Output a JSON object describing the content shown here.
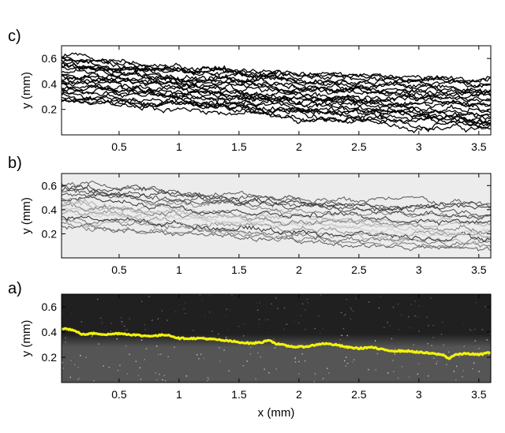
{
  "chart_data": [
    {
      "panel": "c)",
      "type": "line",
      "title": "",
      "xlabel": "",
      "ylabel": "y (mm)",
      "xlim": [
        0.02,
        3.6
      ],
      "ylim": [
        0.0,
        0.7
      ],
      "xticks": [
        "0.5",
        "1",
        "1.5",
        "2",
        "2.5",
        "3",
        "3.5"
      ],
      "yticks": [
        "0.2",
        "0.4",
        "0.6"
      ],
      "background": "#ffffff",
      "line_color": "#000000",
      "description": "Many overlaid interface traces forming a dense band",
      "band_upper": {
        "x": [
          0.02,
          0.5,
          1.0,
          1.5,
          2.0,
          2.5,
          3.0,
          3.6
        ],
        "y": [
          0.64,
          0.6,
          0.55,
          0.52,
          0.5,
          0.48,
          0.46,
          0.45
        ]
      },
      "band_lower": {
        "x": [
          0.02,
          0.5,
          1.0,
          1.5,
          2.0,
          2.5,
          3.0,
          3.6
        ],
        "y": [
          0.25,
          0.22,
          0.2,
          0.17,
          0.12,
          0.1,
          0.06,
          0.03
        ]
      },
      "trace_count": 24
    },
    {
      "panel": "b)",
      "type": "line",
      "title": "",
      "xlabel": "",
      "ylabel": "y (mm)",
      "xlim": [
        0.02,
        3.6
      ],
      "ylim": [
        0.0,
        0.7
      ],
      "xticks": [
        "0.5",
        "1",
        "1.5",
        "2",
        "2.5",
        "3",
        "3.5"
      ],
      "yticks": [
        "0.2",
        "0.4",
        "0.6"
      ],
      "background": "#ececec",
      "line_color": "#222222",
      "description": "Overlaid interface traces shaded from light to dark",
      "band_upper": {
        "x": [
          0.02,
          0.5,
          1.0,
          1.5,
          2.0,
          2.5,
          3.0,
          3.6
        ],
        "y": [
          0.62,
          0.6,
          0.56,
          0.53,
          0.51,
          0.49,
          0.47,
          0.46
        ]
      },
      "band_lower": {
        "x": [
          0.02,
          0.5,
          1.0,
          1.5,
          2.0,
          2.5,
          3.0,
          3.6
        ],
        "y": [
          0.25,
          0.22,
          0.19,
          0.16,
          0.12,
          0.1,
          0.07,
          0.05
        ]
      },
      "trace_count": 18
    },
    {
      "panel": "a)",
      "type": "line",
      "title": "",
      "xlabel": "x (mm)",
      "ylabel": "y (mm)",
      "xlim": [
        0.02,
        3.6
      ],
      "ylim": [
        0.0,
        0.7
      ],
      "xticks": [
        "0.5",
        "1",
        "1.5",
        "2",
        "2.5",
        "3",
        "3.5"
      ],
      "yticks": [
        "0.2",
        "0.4",
        "0.6"
      ],
      "background_top": "#202020",
      "background_bottom": "#555555",
      "line_color": "#f2f20a",
      "description": "Grayscale image with detected interface overlaid in yellow",
      "series": [
        {
          "x": [
            0.02,
            0.1,
            0.2,
            0.3,
            0.4,
            0.5,
            0.6,
            0.7,
            0.8,
            0.9,
            1.0,
            1.1,
            1.2,
            1.3,
            1.4,
            1.5,
            1.6,
            1.7,
            1.75,
            1.8,
            1.9,
            2.0,
            2.1,
            2.2,
            2.3,
            2.4,
            2.5,
            2.6,
            2.7,
            2.8,
            2.9,
            3.0,
            3.1,
            3.2,
            3.25,
            3.3,
            3.4,
            3.5,
            3.6
          ],
          "y": [
            0.43,
            0.42,
            0.38,
            0.39,
            0.38,
            0.39,
            0.38,
            0.37,
            0.37,
            0.38,
            0.35,
            0.35,
            0.35,
            0.34,
            0.33,
            0.32,
            0.31,
            0.32,
            0.34,
            0.31,
            0.29,
            0.28,
            0.29,
            0.31,
            0.3,
            0.28,
            0.27,
            0.28,
            0.26,
            0.25,
            0.25,
            0.24,
            0.23,
            0.22,
            0.19,
            0.22,
            0.23,
            0.22,
            0.24
          ]
        }
      ]
    }
  ],
  "panel_labels": {
    "c": "c)",
    "b": "b)",
    "a": "a)"
  }
}
